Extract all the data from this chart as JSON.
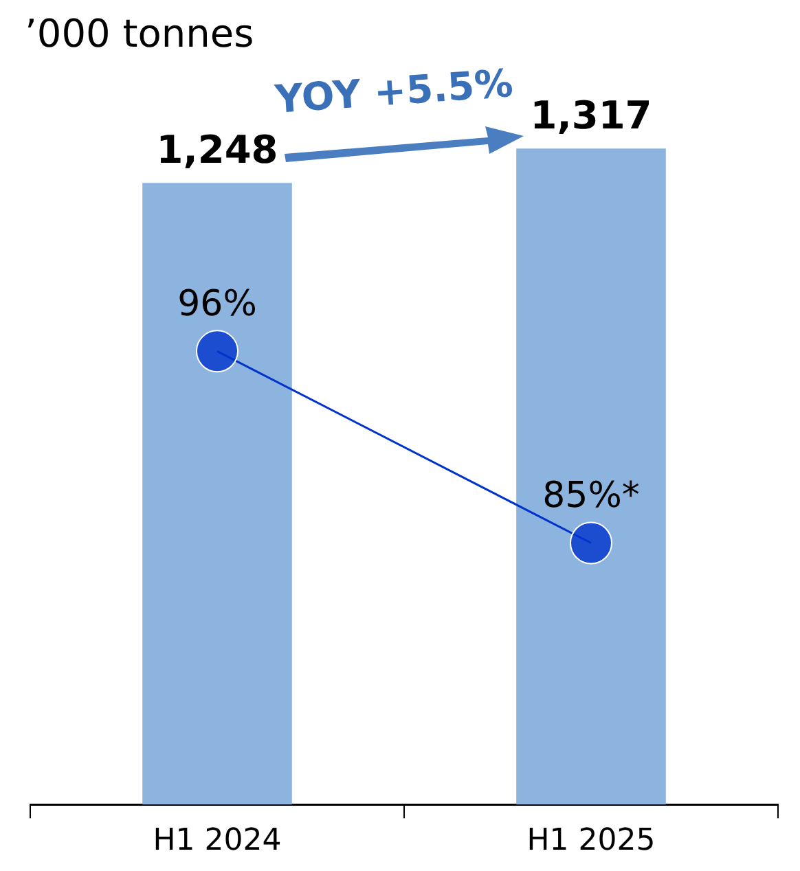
{
  "chart_data": {
    "type": "bar",
    "ylabel": "’000 tonnes",
    "categories": [
      "H1 2024",
      "H1 2025"
    ],
    "series": [
      {
        "color": "#8cb4de",
        "values": [
          1248,
          1317
        ],
        "value_labels": [
          "1,248",
          "1,317"
        ]
      },
      {
        "type": "line",
        "axis": "y2",
        "color": "#0033cc",
        "values": [
          96,
          85
        ],
        "value_labels": [
          "96%",
          "85%*"
        ]
      }
    ],
    "tick_labels": "x",
    "marker": "circle",
    "line_style": "solid",
    "annotations": [
      "YOY +5.5%"
    ]
  }
}
